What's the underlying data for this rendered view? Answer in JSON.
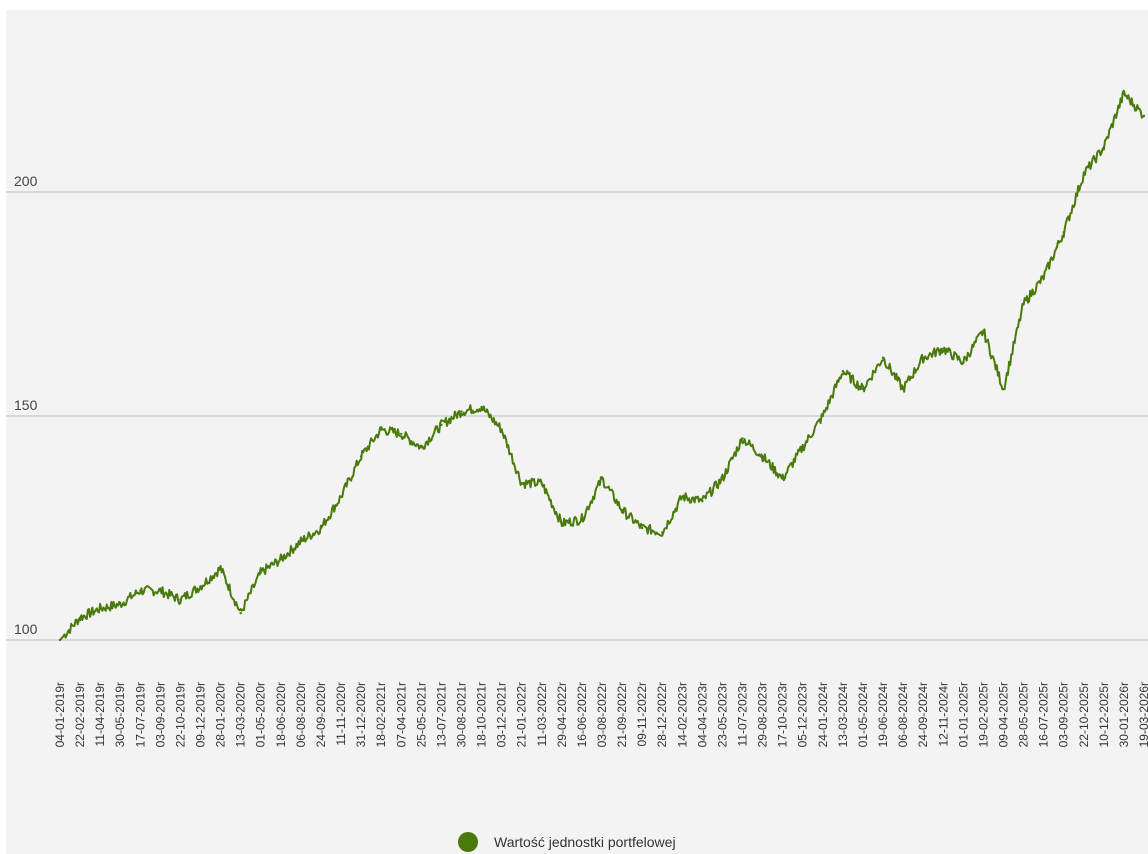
{
  "chart_data": {
    "type": "line",
    "title": "",
    "xlabel": "",
    "ylabel": "",
    "ylim": [
      93,
      234
    ],
    "grid": true,
    "legend_position": "bottom-center",
    "yticks": [
      100,
      150,
      200
    ],
    "xtick_labels": [
      "04-01-2019r",
      "22-02-2019r",
      "11-04-2019r",
      "30-05-2019r",
      "17-07-2019r",
      "03-09-2019r",
      "22-10-2019r",
      "09-12-2019r",
      "28-01-2020r",
      "13-03-2020r",
      "01-05-2020r",
      "18-06-2020r",
      "06-08-2020r",
      "24-09-2020r",
      "11-11-2020r",
      "31-12-2020r",
      "18-02-2021r",
      "07-04-2021r",
      "25-05-2021r",
      "13-07-2021r",
      "30-08-2021r",
      "18-10-2021r",
      "03-12-2021r",
      "21-01-2022r",
      "11-03-2022r",
      "29-04-2022r",
      "16-06-2022r",
      "03-08-2022r",
      "21-09-2022r",
      "09-11-2022r",
      "28-12-2022r",
      "14-02-2023r",
      "04-04-2023r",
      "23-05-2023r",
      "11-07-2023r",
      "29-08-2023r",
      "17-10-2023r",
      "05-12-2023r",
      "24-01-2024r",
      "13-03-2024r",
      "01-05-2024r",
      "19-06-2024r",
      "06-08-2024r",
      "24-09-2024r",
      "12-11-2024r",
      "01-01-2025r",
      "19-02-2025r",
      "09-04-2025r",
      "28-05-2025r",
      "16-07-2025r",
      "03-09-2025r",
      "22-10-2025r",
      "10-12-2025r",
      "30-01-2026r",
      "19-03-2026r"
    ],
    "series": [
      {
        "name": "Wartość jednostki portfelowej",
        "color": "#4a7a0c",
        "x": [
          "04-01-2019r",
          "22-02-2019r",
          "11-04-2019r",
          "30-05-2019r",
          "17-07-2019r",
          "03-09-2019r",
          "22-10-2019r",
          "09-12-2019r",
          "28-01-2020r",
          "13-03-2020r",
          "01-05-2020r",
          "18-06-2020r",
          "06-08-2020r",
          "24-09-2020r",
          "11-11-2020r",
          "31-12-2020r",
          "18-02-2021r",
          "07-04-2021r",
          "25-05-2021r",
          "13-07-2021r",
          "30-08-2021r",
          "18-10-2021r",
          "03-12-2021r",
          "21-01-2022r",
          "11-03-2022r",
          "29-04-2022r",
          "16-06-2022r",
          "03-08-2022r",
          "21-09-2022r",
          "09-11-2022r",
          "28-12-2022r",
          "14-02-2023r",
          "04-04-2023r",
          "23-05-2023r",
          "11-07-2023r",
          "29-08-2023r",
          "17-10-2023r",
          "05-12-2023r",
          "24-01-2024r",
          "13-03-2024r",
          "01-05-2024r",
          "19-06-2024r",
          "06-08-2024r",
          "24-09-2024r",
          "12-11-2024r",
          "01-01-2025r",
          "19-02-2025r",
          "09-04-2025r",
          "28-05-2025r",
          "16-07-2025r",
          "03-09-2025r",
          "22-10-2025r",
          "10-12-2025r",
          "30-01-2026r",
          "19-03-2026r"
        ],
        "values": [
          100,
          105,
          107,
          108,
          111,
          111,
          109,
          112,
          116,
          106,
          115,
          118,
          122,
          125,
          132,
          141,
          147,
          146,
          143,
          148,
          151,
          152,
          147,
          135,
          135,
          126,
          127,
          136,
          129,
          125,
          124,
          132,
          131,
          136,
          145,
          141,
          136,
          143,
          150,
          160,
          156,
          163,
          156,
          163,
          165,
          162,
          169,
          156,
          175,
          181,
          191,
          204,
          210,
          222,
          217
        ]
      }
    ]
  },
  "legend": {
    "label": "Wartość jednostki portfelowej",
    "color": "#4a7a0c"
  }
}
